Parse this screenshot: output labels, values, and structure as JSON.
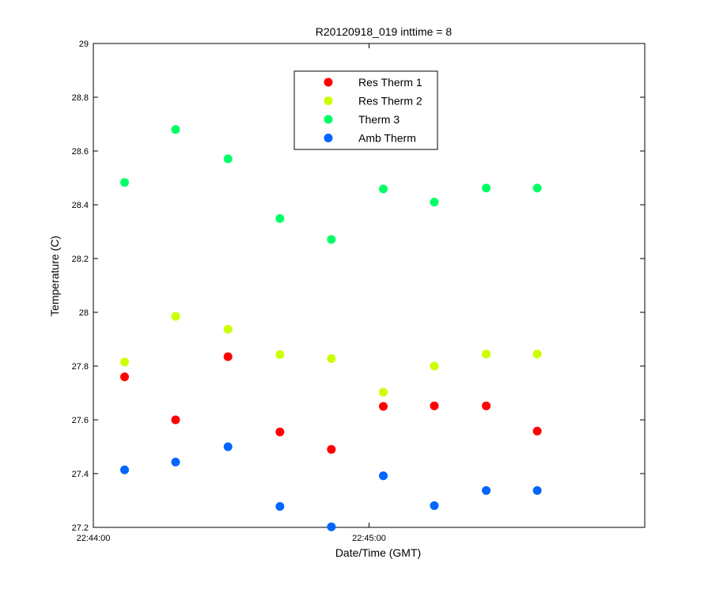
{
  "chart_data": {
    "type": "scatter",
    "title": "R20120918_019 inttime = 8",
    "xlabel": "Date/Time (GMT)",
    "ylabel": "Temperature (C)",
    "x_unit": "seconds after 22:44:00",
    "xlim": [
      0,
      120
    ],
    "ylim": [
      27.2,
      29
    ],
    "x_ticks": [
      {
        "value": 0,
        "label": "22:44:00"
      },
      {
        "value": 60,
        "label": "22:45:00"
      }
    ],
    "y_ticks": [
      {
        "value": 27.2,
        "label": "27.2"
      },
      {
        "value": 27.4,
        "label": "27.4"
      },
      {
        "value": 27.6,
        "label": "27.6"
      },
      {
        "value": 27.8,
        "label": "27.8"
      },
      {
        "value": 28.0,
        "label": "28"
      },
      {
        "value": 28.2,
        "label": "28.2"
      },
      {
        "value": 28.4,
        "label": "28.4"
      },
      {
        "value": 28.6,
        "label": "28.6"
      },
      {
        "value": 28.8,
        "label": "28.8"
      },
      {
        "value": 29.0,
        "label": "29"
      }
    ],
    "grid": false,
    "legend_position": "top-center",
    "x": [
      6.8,
      17.9,
      29.3,
      40.6,
      51.8,
      63.1,
      74.2,
      85.5,
      96.6
    ],
    "series": [
      {
        "name": "Res Therm 1",
        "color": "#ff0000",
        "values": [
          27.76,
          27.6,
          27.835,
          27.555,
          27.49,
          27.65,
          27.652,
          27.652,
          27.558
        ]
      },
      {
        "name": "Res Therm 2",
        "color": "#ccff00",
        "values": [
          27.815,
          27.985,
          27.937,
          27.843,
          27.828,
          27.703,
          27.8,
          27.845,
          27.845
        ]
      },
      {
        "name": "Therm 3",
        "color": "#00ff66",
        "values": [
          28.483,
          28.68,
          28.571,
          28.349,
          28.271,
          28.459,
          28.41,
          28.462,
          28.462
        ]
      },
      {
        "name": "Amb Therm",
        "color": "#0066ff",
        "values": [
          27.414,
          27.443,
          27.5,
          27.278,
          27.202,
          27.392,
          27.281,
          27.337,
          27.337
        ]
      }
    ]
  }
}
